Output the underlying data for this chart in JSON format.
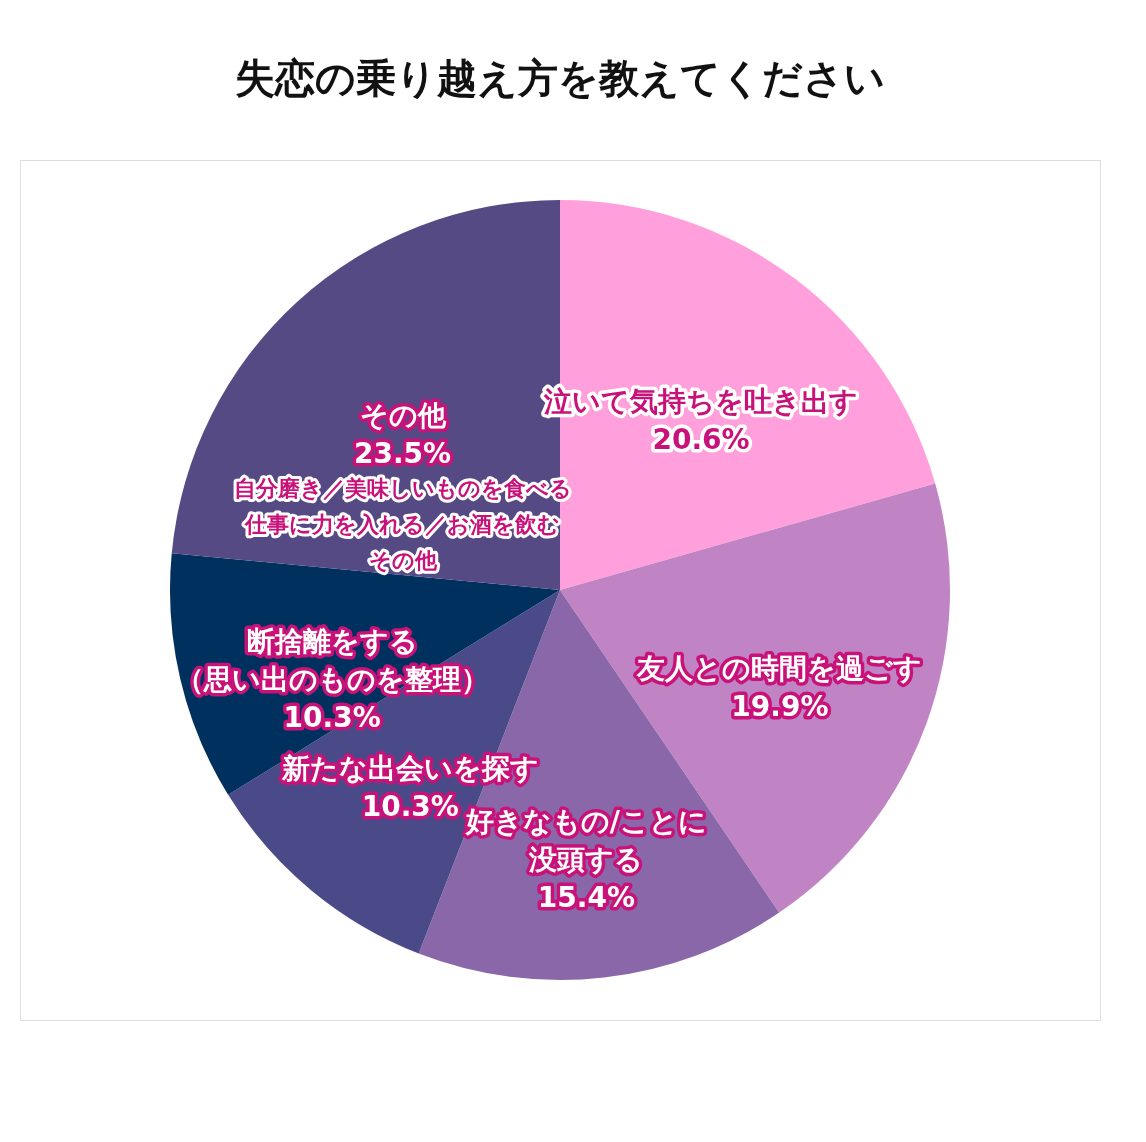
{
  "chart_data": {
    "type": "pie",
    "title": "失恋の乗り越え方を教えてください",
    "categories": [
      "泣いて気持ちを吐き出す",
      "友人との時間を過ごす",
      "好きなもの/ことに没頭する",
      "新たな出会いを探す",
      "断捨離をする（思い出のものを整理）",
      "その他"
    ],
    "values": [
      20.6,
      19.9,
      15.4,
      10.3,
      10.3,
      23.5
    ],
    "colors": [
      "#ffa0dc",
      "#c083c4",
      "#8a67a8",
      "#4a4a88",
      "#00305e",
      "#564a85"
    ],
    "value_labels": [
      "20.6%",
      "19.9%",
      "15.4%",
      "10.3%",
      "10.3%",
      "23.5%"
    ],
    "annotations": [
      "自分磨き／美味しいものを食べる",
      "仕事に力を入れる／お酒を飲む",
      "その他"
    ],
    "legend": false
  }
}
